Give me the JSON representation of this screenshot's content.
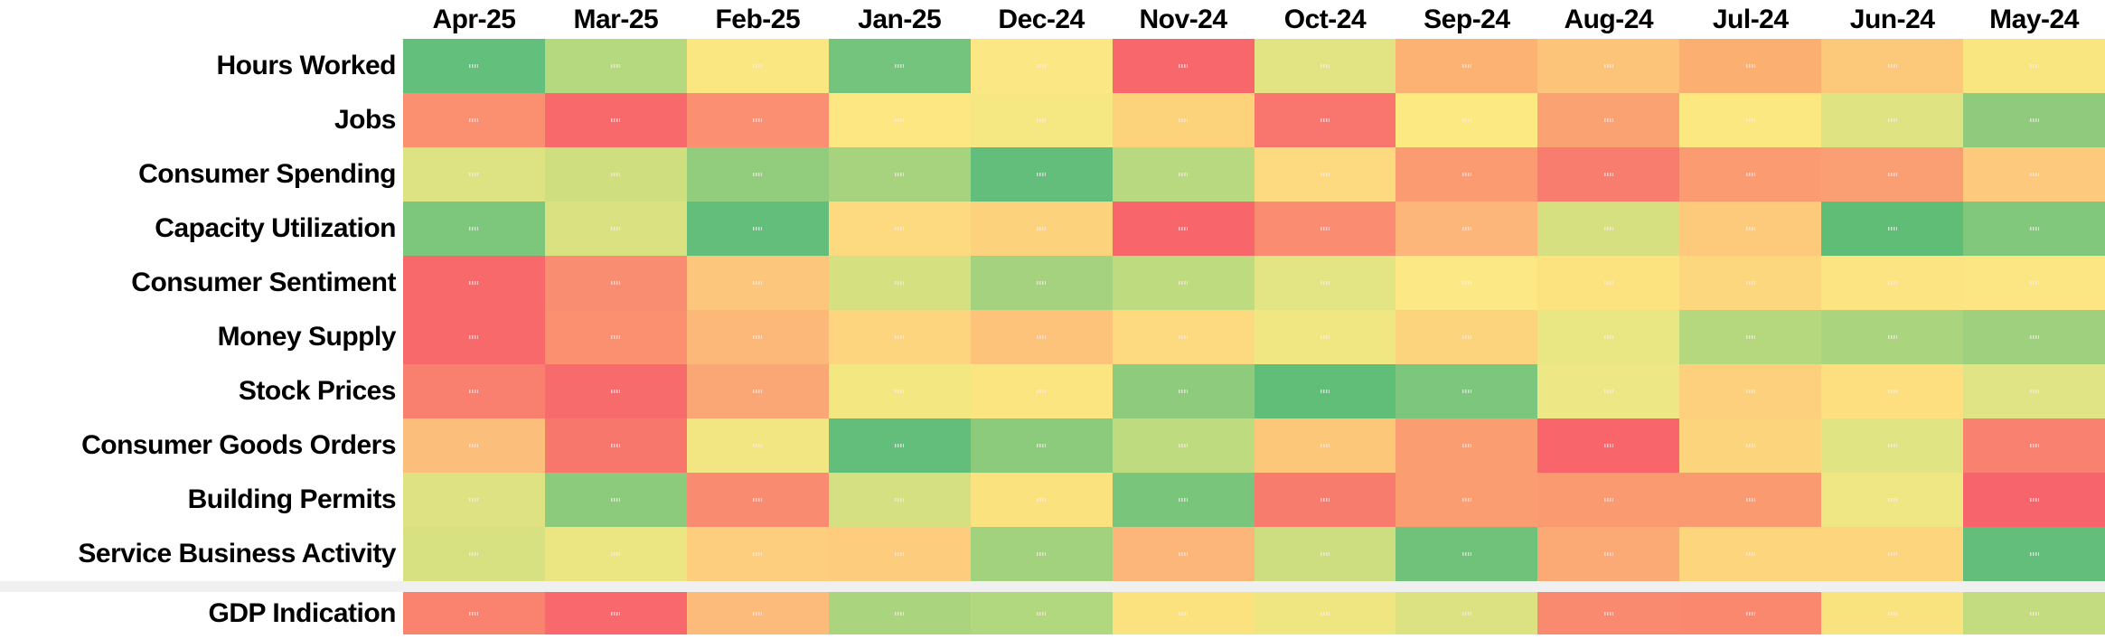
{
  "layout_colors": {
    "background": "#FFFFFF",
    "separator_band": "#F0F0F0",
    "label_text": "#000000"
  },
  "chart_data": {
    "type": "heatmap",
    "title": "",
    "columns": [
      "Apr-25",
      "Mar-25",
      "Feb-25",
      "Jan-25",
      "Dec-24",
      "Nov-24",
      "Oct-24",
      "Sep-24",
      "Aug-24",
      "Jul-24",
      "Jun-24",
      "May-24"
    ],
    "palette": {
      "negative": "#F8696B",
      "neutral": "#FFEB84",
      "positive": "#63BE7B"
    },
    "legend_position": "none",
    "main_rows": [
      {
        "label": "Hours Worked",
        "colors": [
          "#62C07C",
          "#B5D97F",
          "#FAE781",
          "#75C47D",
          "#FBE783",
          "#F8676C",
          "#E2E484",
          "#FBB273",
          "#FCC478",
          "#FBB072",
          "#FCC87A",
          "#F9E680"
        ]
      },
      {
        "label": "Jobs",
        "colors": [
          "#FA9070",
          "#F8696B",
          "#FA9071",
          "#FCE782",
          "#F5E883",
          "#FCD27B",
          "#F8766E",
          "#FCE982",
          "#FBA273",
          "#FBE881",
          "#DFE382",
          "#90CA7D"
        ]
      },
      {
        "label": "Consumer Spending",
        "colors": [
          "#DDE282",
          "#CFDF80",
          "#92CC7D",
          "#A8D37E",
          "#63BE7B",
          "#B8D980",
          "#FDD97F",
          "#FA9B72",
          "#F97D6E",
          "#FA9B72",
          "#FA9F73",
          "#FDC97C"
        ]
      },
      {
        "label": "Capacity Utilization",
        "colors": [
          "#7CC77C",
          "#D9E181",
          "#63BE7B",
          "#FDD97F",
          "#FCD27C",
          "#F8666C",
          "#F98C71",
          "#FCB679",
          "#D7E081",
          "#FDCA7C",
          "#5FBD76",
          "#82C87C"
        ]
      },
      {
        "label": "Consumer Sentiment",
        "colors": [
          "#F8696B",
          "#F98D72",
          "#FCC77D",
          "#D5E080",
          "#A4D27E",
          "#BFDB80",
          "#E3E483",
          "#FCE885",
          "#FCE380",
          "#FCD77E",
          "#FCE482",
          "#FCE684"
        ]
      },
      {
        "label": "Money Supply",
        "colors": [
          "#F8696B",
          "#FA9070",
          "#FCB878",
          "#FDD57E",
          "#FDC37B",
          "#FDD97F",
          "#F0E783",
          "#FCD47D",
          "#E9E783",
          "#B5D77E",
          "#ABD47E",
          "#9ED07D"
        ]
      },
      {
        "label": "Stock Prices",
        "colors": [
          "#F97F6E",
          "#F86B6C",
          "#FBA775",
          "#F3E781",
          "#FAE580",
          "#8ECB7C",
          "#60BE78",
          "#7CC67E",
          "#EDE885",
          "#FCD07C",
          "#FDDF80",
          "#E0E484"
        ]
      },
      {
        "label": "Consumer Goods Orders",
        "colors": [
          "#FCBE7B",
          "#F8776D",
          "#F1E681",
          "#63BE7B",
          "#8CCB7C",
          "#BEDB80",
          "#FCC778",
          "#FA9D71",
          "#F8666B",
          "#FCD47B",
          "#E0E483",
          "#F98170"
        ]
      },
      {
        "label": "Building Permits",
        "colors": [
          "#DEE282",
          "#8CCB7C",
          "#F98B70",
          "#D4E081",
          "#FAE27F",
          "#79C57C",
          "#F87C6D",
          "#FA9E72",
          "#FA9A71",
          "#FA9A71",
          "#EEE784",
          "#F7646C"
        ]
      },
      {
        "label": "Service Business Activity",
        "colors": [
          "#D8E181",
          "#ECE682",
          "#FDCE7D",
          "#FDCD7D",
          "#A2D27E",
          "#FCB679",
          "#CCDE80",
          "#70C27B",
          "#FBA975",
          "#FCD57D",
          "#FCD57D",
          "#63BE7B"
        ]
      }
    ],
    "separated_row": {
      "label": "GDP Indication",
      "colors": [
        "#F9836F",
        "#F8686C",
        "#FCBB7A",
        "#AAD57E",
        "#B1D77F",
        "#FBE27F",
        "#F0E681",
        "#DCE282",
        "#F98A70",
        "#F9886F",
        "#F8E37E",
        "#C4DC80"
      ]
    }
  }
}
